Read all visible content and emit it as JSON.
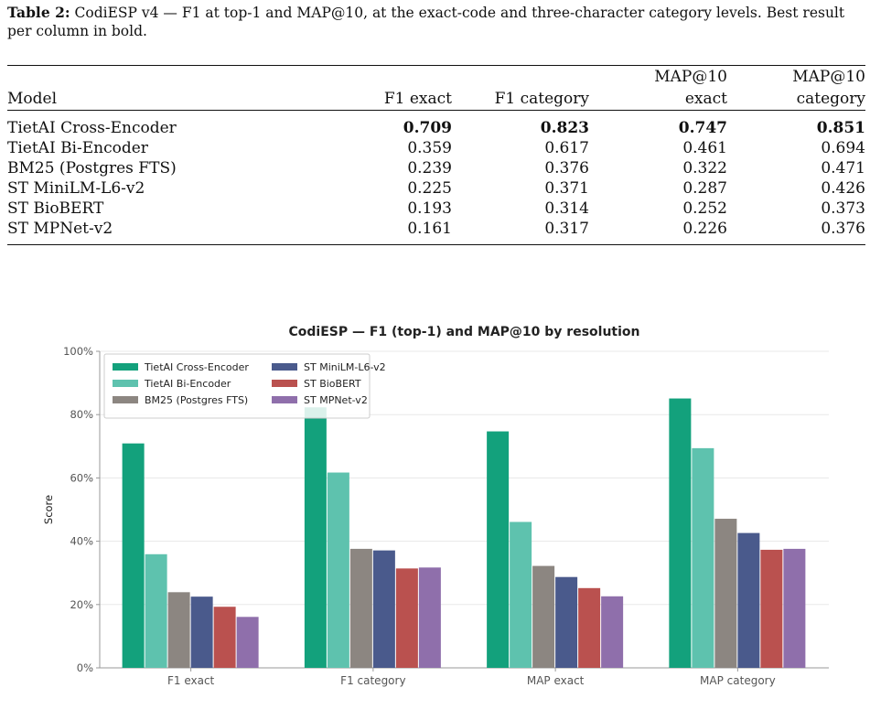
{
  "caption": {
    "label": "Table 2:",
    "text": " CodiESP v4 — F1 at top-1 and MAP@10, at the exact-code and three-character category levels. Best result per column in bold."
  },
  "table": {
    "header_top": [
      "",
      "",
      "",
      "MAP@10",
      "MAP@10"
    ],
    "header_bottom": [
      "Model",
      "F1 exact",
      "F1 category",
      "exact",
      "category"
    ],
    "rows": [
      {
        "model": "TietAI Cross-Encoder",
        "values": [
          "0.709",
          "0.823",
          "0.747",
          "0.851"
        ],
        "bold": true
      },
      {
        "model": "TietAI Bi-Encoder",
        "values": [
          "0.359",
          "0.617",
          "0.461",
          "0.694"
        ],
        "bold": false
      },
      {
        "model": "BM25 (Postgres FTS)",
        "values": [
          "0.239",
          "0.376",
          "0.322",
          "0.471"
        ],
        "bold": false
      },
      {
        "model": "ST MiniLM-L6-v2",
        "values": [
          "0.225",
          "0.371",
          "0.287",
          "0.426"
        ],
        "bold": false
      },
      {
        "model": "ST BioBERT",
        "values": [
          "0.193",
          "0.314",
          "0.252",
          "0.373"
        ],
        "bold": false
      },
      {
        "model": "ST MPNet-v2",
        "values": [
          "0.161",
          "0.317",
          "0.226",
          "0.376"
        ],
        "bold": false
      }
    ]
  },
  "chart_data": {
    "type": "bar",
    "title": "CodiESP — F1 (top-1) and MAP@10 by resolution",
    "ylabel": "Score",
    "xlabel": "",
    "ylim": [
      0,
      100
    ],
    "yticks": [
      "0%",
      "20%",
      "40%",
      "60%",
      "80%",
      "100%"
    ],
    "ytick_values": [
      0,
      20,
      40,
      60,
      80,
      100
    ],
    "grid": true,
    "legend_position": "top-left",
    "categories": [
      "F1 exact",
      "F1 category",
      "MAP exact",
      "MAP category"
    ],
    "series": [
      {
        "name": "TietAI Cross-Encoder",
        "color": "#13a17c",
        "values": [
          70.9,
          82.3,
          74.7,
          85.1
        ]
      },
      {
        "name": "TietAI Bi-Encoder",
        "color": "#5ec2ae",
        "values": [
          35.9,
          61.7,
          46.1,
          69.4
        ]
      },
      {
        "name": "BM25 (Postgres FTS)",
        "color": "#8c8681",
        "values": [
          23.9,
          37.6,
          32.2,
          47.1
        ]
      },
      {
        "name": "ST MiniLM-L6-v2",
        "color": "#4a5a8c",
        "values": [
          22.5,
          37.1,
          28.7,
          42.6
        ]
      },
      {
        "name": "ST BioBERT",
        "color": "#ba514f",
        "values": [
          19.3,
          31.4,
          25.2,
          37.3
        ]
      },
      {
        "name": "ST MPNet-v2",
        "color": "#8f6fab",
        "values": [
          16.1,
          31.7,
          22.6,
          37.6
        ]
      }
    ]
  }
}
